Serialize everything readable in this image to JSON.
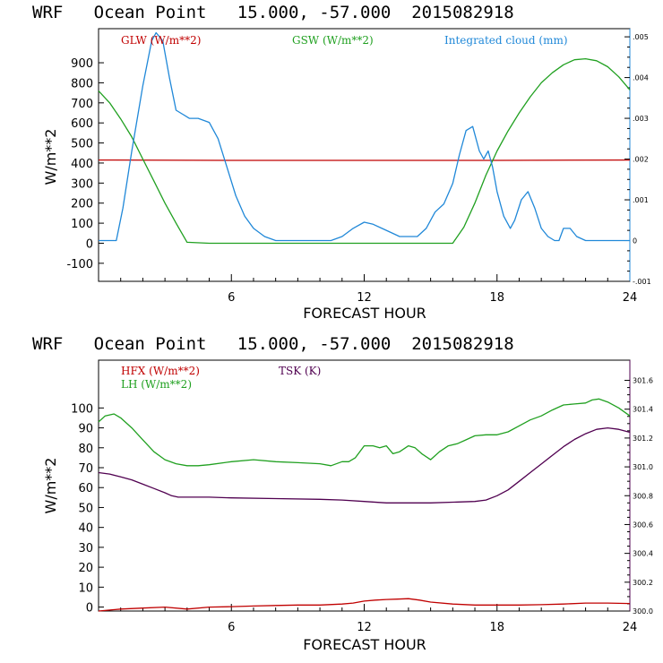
{
  "chart_data": [
    {
      "type": "line",
      "title": "WRF   Ocean Point   15.000, -57.000  2015082918",
      "xlabel": "FORECAST HOUR",
      "ylabel": "W/m**2",
      "xlim": [
        0,
        24
      ],
      "ylim": [
        -190,
        1070
      ],
      "y2lim": [
        -0.001,
        0.0052
      ],
      "xticks": [
        "6",
        "12",
        "18",
        "24"
      ],
      "yticks": [
        "-100",
        "0",
        "100",
        "200",
        "300",
        "400",
        "500",
        "600",
        "700",
        "800",
        "900"
      ],
      "y2ticks": [
        "-.001",
        "0",
        ".001",
        ".002",
        ".003",
        ".004",
        ".005"
      ],
      "series": [
        {
          "name": "GLW (W/m**2)",
          "color": "#c00000",
          "axis": "left",
          "x": [
            0,
            6,
            12,
            18,
            24
          ],
          "y": [
            415,
            413,
            413,
            413,
            415
          ]
        },
        {
          "name": "GSW (W/m**2)",
          "color": "#20a020",
          "axis": "left",
          "x": [
            0,
            0.5,
            1.0,
            1.5,
            2.0,
            2.5,
            3.0,
            3.5,
            4.0,
            5,
            6,
            8,
            10,
            12,
            14,
            16,
            16.5,
            17,
            17.5,
            18,
            18.5,
            19,
            19.5,
            20,
            20.5,
            21,
            21.5,
            22,
            22.5,
            23,
            23.5,
            24
          ],
          "y": [
            760,
            700,
            620,
            530,
            420,
            310,
            200,
            100,
            5,
            0,
            0,
            0,
            0,
            0,
            0,
            0,
            80,
            200,
            340,
            460,
            560,
            650,
            730,
            800,
            850,
            890,
            915,
            920,
            910,
            880,
            830,
            765
          ]
        },
        {
          "name": "Integrated cloud (mm)",
          "color": "#2088d8",
          "axis": "right",
          "x": [
            0,
            0.8,
            1.1,
            1.5,
            2.0,
            2.4,
            2.6,
            2.9,
            3.2,
            3.5,
            3.8,
            4.1,
            4.5,
            5.0,
            5.4,
            5.8,
            6.2,
            6.6,
            7.0,
            7.5,
            8.0,
            9.0,
            10.5,
            11.0,
            11.5,
            12.0,
            12.4,
            12.8,
            13.2,
            13.6,
            14.0,
            14.4,
            14.8,
            15.2,
            15.6,
            16.0,
            16.3,
            16.6,
            16.9,
            17.2,
            17.4,
            17.6,
            17.8,
            18.0,
            18.3,
            18.6,
            18.8,
            19.1,
            19.4,
            19.7,
            20.0,
            20.3,
            20.6,
            20.8,
            21.0,
            21.3,
            21.6,
            22.0,
            22.5,
            24
          ],
          "y": [
            0,
            0,
            0.0008,
            0.0022,
            0.0038,
            0.0049,
            0.0051,
            0.0049,
            0.004,
            0.0032,
            0.0031,
            0.003,
            0.003,
            0.0029,
            0.0025,
            0.0018,
            0.0011,
            0.0006,
            0.0003,
            0.0001,
            0,
            0,
            0,
            0.0001,
            0.0003,
            0.00045,
            0.0004,
            0.0003,
            0.0002,
            0.0001,
            0.0001,
            0.0001,
            0.0003,
            0.0007,
            0.0009,
            0.0014,
            0.0021,
            0.0027,
            0.0028,
            0.0022,
            0.002,
            0.0022,
            0.0018,
            0.0012,
            0.0006,
            0.0003,
            0.0005,
            0.001,
            0.0012,
            0.0008,
            0.0003,
            0.0001,
            0,
            0,
            0.0003,
            0.0003,
            0.0001,
            0,
            0,
            0
          ]
        }
      ]
    },
    {
      "type": "line",
      "title": "WRF   Ocean Point   15.000, -57.000  2015082918",
      "xlabel": "FORECAST HOUR",
      "ylabel": "W/m**2",
      "xlim": [
        0,
        24
      ],
      "ylim": [
        -2,
        124
      ],
      "y2lim": [
        300.0,
        301.74
      ],
      "xticks": [
        "6",
        "12",
        "18",
        "24"
      ],
      "yticks": [
        "0",
        "10",
        "20",
        "30",
        "40",
        "50",
        "60",
        "70",
        "80",
        "90",
        "100"
      ],
      "y2ticks": [
        "300.0",
        "300.2",
        "300.4",
        "300.6",
        "300.8",
        "301.0",
        "301.2",
        "301.4",
        "301.6"
      ],
      "series": [
        {
          "name": "HFX (W/m**2)",
          "color": "#c00000",
          "axis": "left",
          "x": [
            0,
            1,
            2,
            3,
            4,
            5,
            6,
            7,
            8,
            9,
            10,
            11,
            11.5,
            12,
            12.5,
            13,
            13.5,
            14,
            14.5,
            15,
            16,
            17,
            18,
            19,
            20,
            21,
            22,
            23,
            24
          ],
          "y": [
            -2,
            -1,
            -0.5,
            0,
            -1,
            0,
            0.2,
            0.5,
            0.8,
            1,
            1,
            1.5,
            2,
            3,
            3.5,
            3.8,
            4,
            4.2,
            3.5,
            2.5,
            1.5,
            1,
            1,
            1,
            1.2,
            1.5,
            2,
            2,
            1.8
          ]
        },
        {
          "name": "LH (W/m**2)",
          "color": "#20a020",
          "axis": "left",
          "x": [
            0,
            0.3,
            0.7,
            1,
            1.5,
            2,
            2.5,
            3,
            3.5,
            4,
            4.5,
            5,
            6,
            7,
            8,
            9,
            10,
            10.5,
            11,
            11.3,
            11.6,
            12,
            12.4,
            12.7,
            13,
            13.3,
            13.6,
            14,
            14.3,
            14.6,
            15,
            15.4,
            15.8,
            16.2,
            16.6,
            17,
            17.5,
            18,
            18.5,
            19,
            19.5,
            20,
            20.5,
            21,
            21.5,
            22,
            22.3,
            22.6,
            23,
            23.5,
            24
          ],
          "y": [
            93,
            96,
            97,
            95,
            90,
            84,
            78,
            74,
            72,
            71,
            71,
            71.5,
            73,
            74,
            73,
            72.5,
            72,
            71,
            73,
            73,
            75,
            81,
            81,
            80,
            81,
            77,
            78,
            81,
            80,
            77,
            74,
            78,
            81,
            82,
            84,
            86,
            86.5,
            86.5,
            88,
            91,
            94,
            96,
            99,
            101.5,
            102,
            102.5,
            104,
            104.5,
            103,
            100,
            96
          ]
        },
        {
          "name": "TSK (K)",
          "color": "#500050",
          "axis": "right",
          "x": [
            0,
            0.5,
            1,
            1.5,
            2,
            2.5,
            3,
            3.3,
            3.6,
            4,
            5,
            6,
            8,
            10,
            11,
            12,
            13,
            14,
            15,
            16,
            17,
            17.5,
            18,
            18.5,
            19,
            19.5,
            20,
            20.5,
            21,
            21.5,
            22,
            22.5,
            23,
            23.5,
            24
          ],
          "y": [
            300.96,
            300.95,
            300.93,
            300.91,
            300.88,
            300.85,
            300.82,
            300.8,
            300.79,
            300.79,
            300.79,
            300.785,
            300.78,
            300.775,
            300.77,
            300.76,
            300.75,
            300.75,
            300.75,
            300.755,
            300.76,
            300.77,
            300.8,
            300.84,
            300.9,
            300.96,
            301.02,
            301.08,
            301.14,
            301.19,
            301.23,
            301.26,
            301.27,
            301.26,
            301.24
          ]
        }
      ]
    }
  ]
}
